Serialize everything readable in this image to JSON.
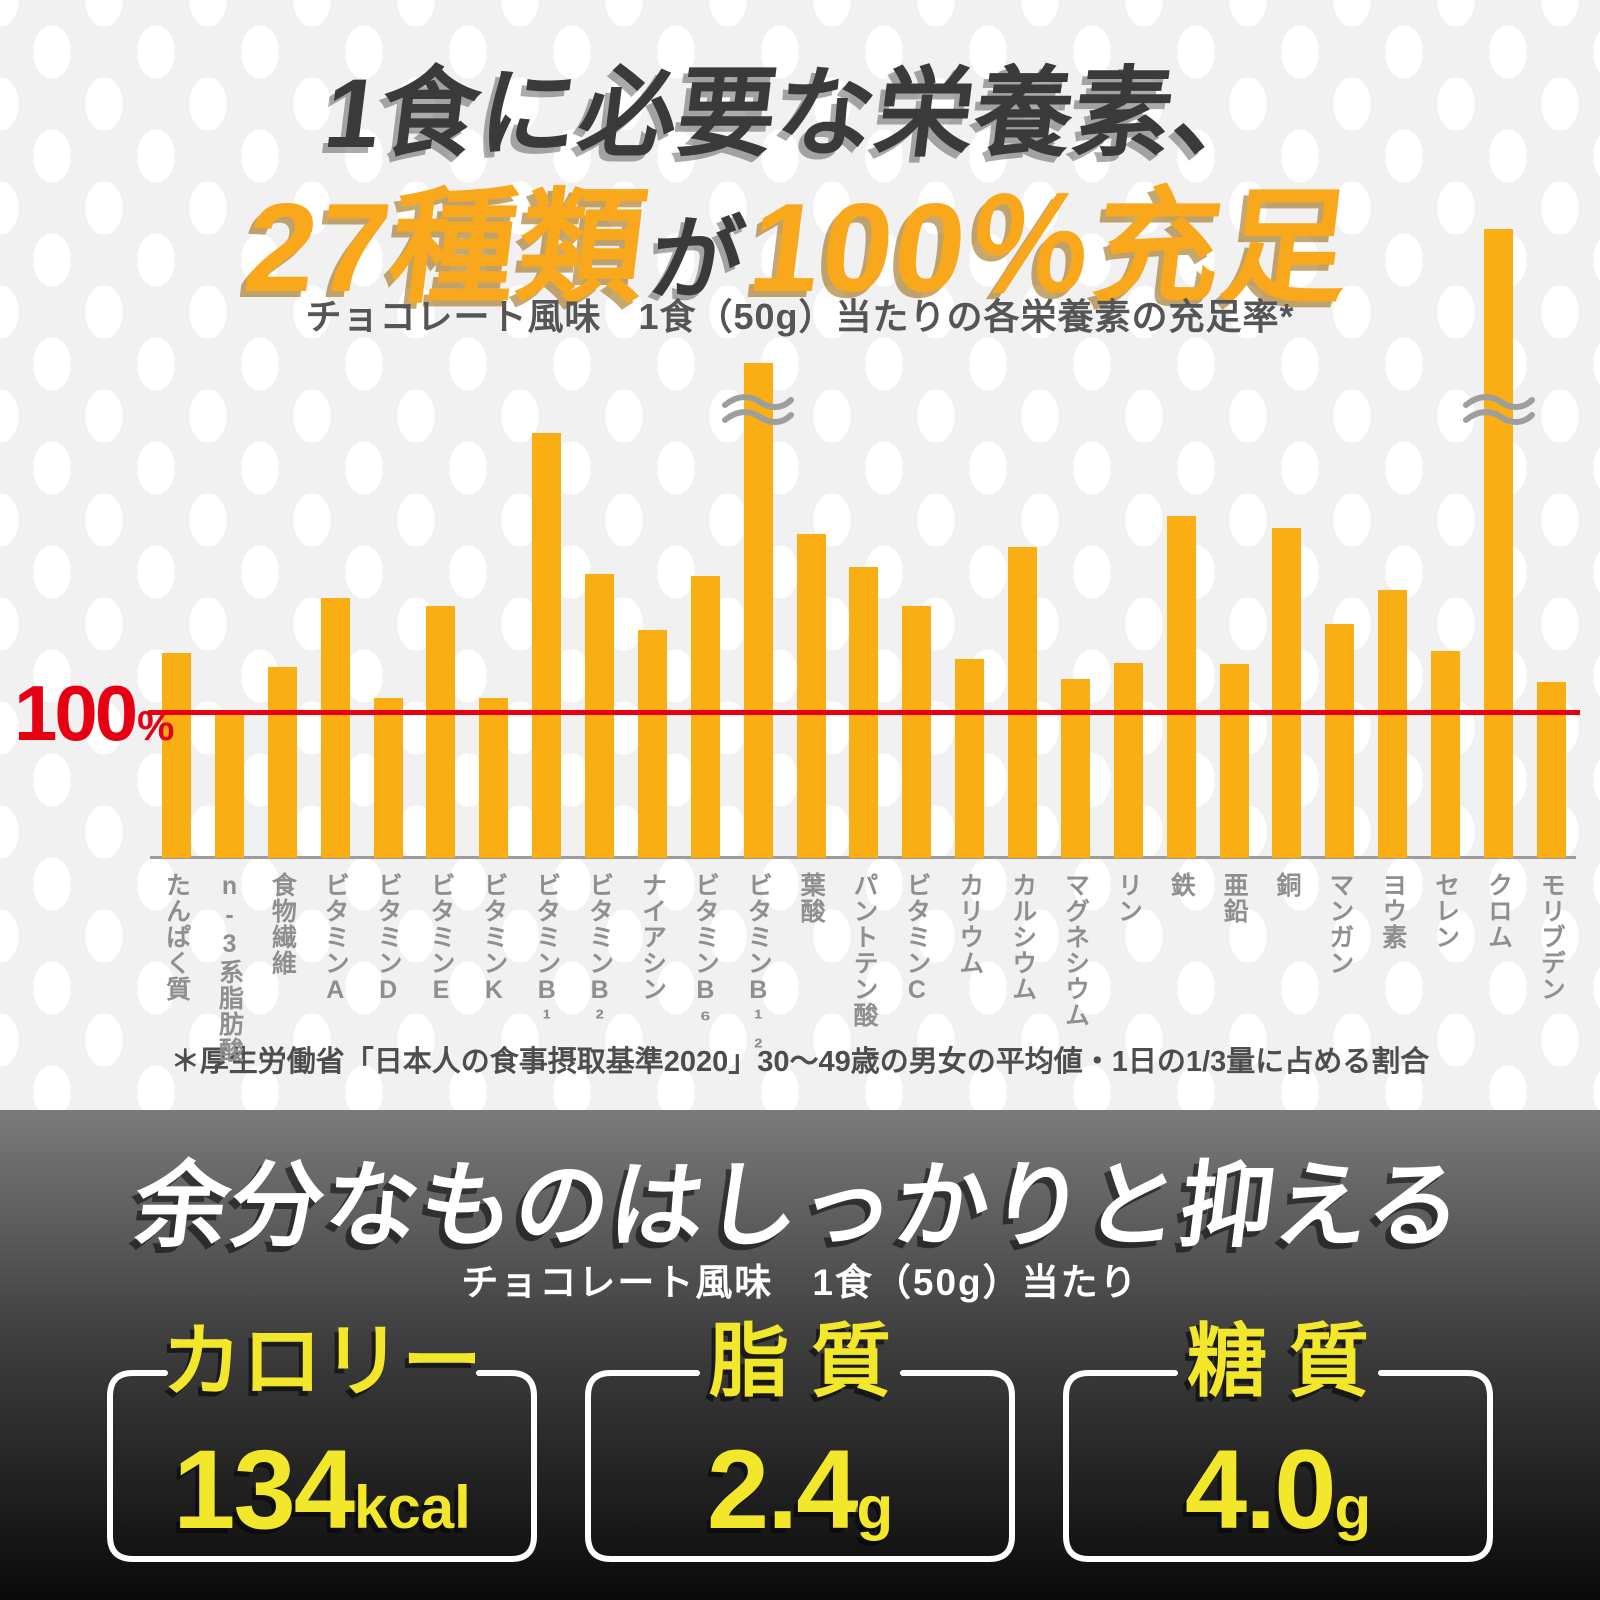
{
  "header": {
    "line1": "1食に必要な栄養素、",
    "line2_highlight1": "27種類",
    "line2_connector": "が",
    "line2_highlight2": "100％充足"
  },
  "footnote": "＊厚生労働省「日本人の食事摂取基準2020」30〜49歳の男女の平均値・1日の1/3量に占める割合",
  "chart_data": {
    "type": "bar",
    "title": "チョコレート風味　1食（50g）当たりの各栄養素の充足率*",
    "ylabel": "充足率",
    "unit": "%",
    "grid": false,
    "reference_line": {
      "value": 100,
      "label": "100",
      "unit": "%",
      "color": "#E60012"
    },
    "bar_color": "#F9AF13",
    "categories": [
      "たんぱく質",
      "n-3系脂肪酸",
      "食物繊維",
      "ビタミンA",
      "ビタミンD",
      "ビタミンE",
      "ビタミンK",
      "ビタミンB¹",
      "ビタミンB²",
      "ナイアシン",
      "ビタミンB⁶",
      "ビタミンB¹²",
      "葉酸",
      "パントテン酸",
      "ビタミンC",
      "カリウム",
      "カルシウム",
      "マグネシウム",
      "リン",
      "鉄",
      "亜鉛",
      "銅",
      "マンガン",
      "ヨウ素",
      "セレン",
      "クロム",
      "モリブデン"
    ],
    "values": [
      141,
      100,
      131,
      179,
      110,
      173,
      110,
      292,
      195,
      157,
      194,
      340,
      223,
      200,
      173,
      137,
      214,
      123,
      134,
      235,
      133,
      227,
      161,
      184,
      142,
      432,
      121
    ],
    "truncated_bars": [
      "ビタミンB¹²",
      "クロム"
    ],
    "truncated_note": "軸省略記号（波線）付き：実際の値はさらに大きい"
  },
  "bottom": {
    "heading": "余分なものはしっかりと抑える",
    "subtitle": "チョコレート風味　1食（50g）当たり",
    "panels": [
      {
        "label": "カロリー",
        "value": "134",
        "unit": "kcal"
      },
      {
        "label": "脂質",
        "value": "2.4",
        "unit": "g"
      },
      {
        "label": "糖質",
        "value": "4.0",
        "unit": "g"
      }
    ]
  },
  "colors": {
    "accent_orange": "#F9A81B",
    "bar_yellow": "#F9AF13",
    "reference_red": "#E60012",
    "bottom_yellow": "#F3E72B",
    "label_gray": "#8F8F8F"
  }
}
